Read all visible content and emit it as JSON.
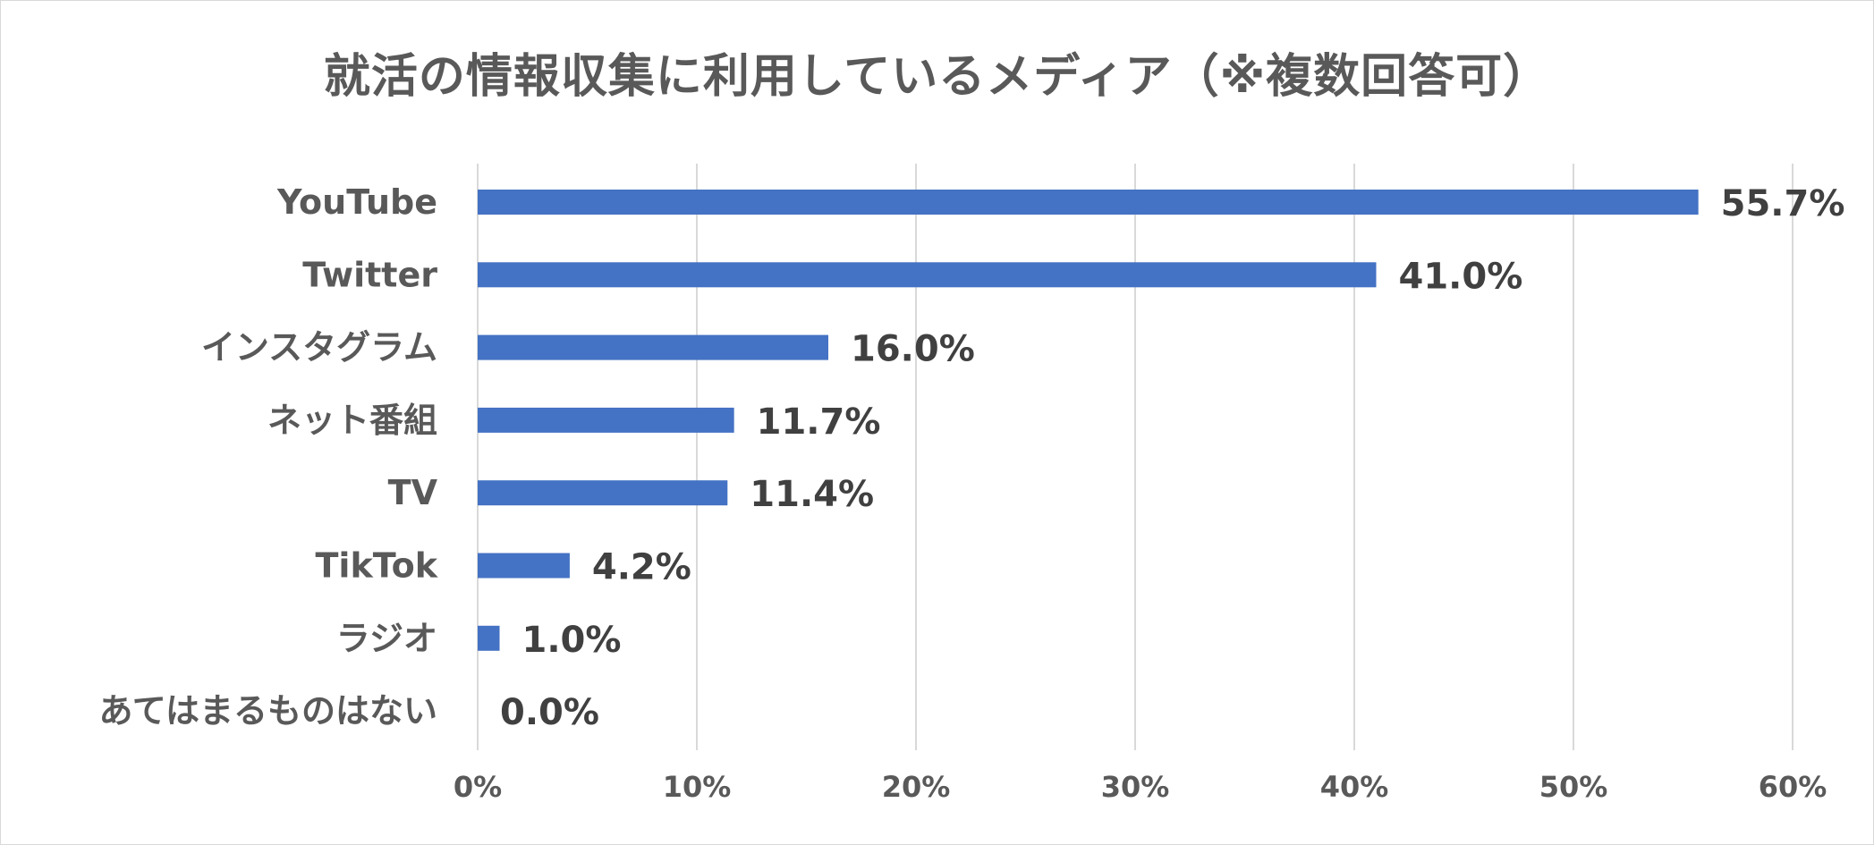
{
  "chart_data": {
    "type": "bar",
    "orientation": "horizontal",
    "title": "就活の情報収集に利用しているメディア（※複数回答可）",
    "xlabel": "",
    "ylabel": "",
    "categories": [
      "YouTube",
      "Twitter",
      "インスタグラム",
      "ネット番組",
      "TV",
      "TikTok",
      "ラジオ",
      "あてはまるものはない"
    ],
    "values": [
      55.7,
      41.0,
      16.0,
      11.7,
      11.4,
      4.2,
      1.0,
      0.0
    ],
    "value_labels": [
      "55.7%",
      "41.0%",
      "16.0%",
      "11.7%",
      "11.4%",
      "4.2%",
      "1.0%",
      "0.0%"
    ],
    "xlim": [
      0,
      60
    ],
    "xticks": [
      0,
      10,
      20,
      30,
      40,
      50,
      60
    ],
    "xtick_labels": [
      "0%",
      "10%",
      "20%",
      "30%",
      "40%",
      "50%",
      "60%"
    ],
    "grid": true,
    "legend": "none",
    "bar_color": "#4472C4",
    "grid_color": "#d9d9d9"
  }
}
